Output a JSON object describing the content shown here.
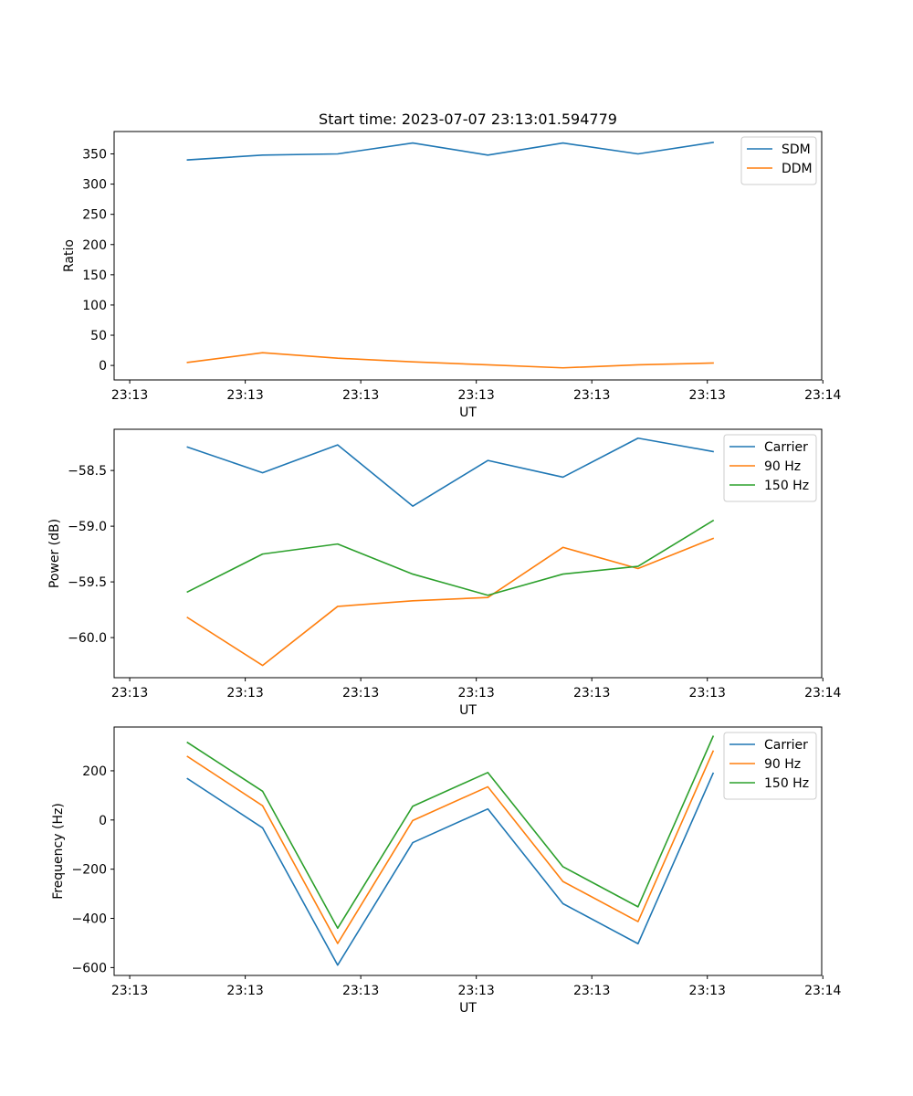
{
  "colors": {
    "series_1": "#1f77b4",
    "series_2": "#ff7f0e",
    "series_3": "#2ca02c",
    "axis": "#000000",
    "legend_border": "#cccccc",
    "background": "#ffffff"
  },
  "chart_data": [
    {
      "type": "line",
      "title": "Start time: 2023-07-07 23:13:01.594779",
      "xlabel": "UT",
      "ylabel": "Ratio",
      "grid": false,
      "legend_position": "top-right",
      "xlim": [
        -0.135,
        5.99
      ],
      "ylim": [
        -24,
        387
      ],
      "x": [
        0.5,
        1.15,
        1.8,
        2.45,
        3.1,
        3.75,
        4.4,
        5.05
      ],
      "xtick_values": [
        0,
        1,
        2,
        3,
        4,
        5,
        6
      ],
      "xtick_labels": [
        "23:13",
        "23:13",
        "23:13",
        "23:13",
        "23:13",
        "23:13",
        "23:14"
      ],
      "ytick_values": [
        0,
        50,
        100,
        150,
        200,
        250,
        300,
        350
      ],
      "ytick_labels": [
        "0",
        "50",
        "100",
        "150",
        "200",
        "250",
        "300",
        "350"
      ],
      "series": [
        {
          "name": "SDM",
          "color_key": "series_1",
          "values": [
            340,
            348,
            350,
            368,
            348,
            368,
            350,
            369
          ]
        },
        {
          "name": "DDM",
          "color_key": "series_2",
          "values": [
            5,
            21,
            12,
            6,
            1,
            -4,
            1,
            4
          ]
        }
      ]
    },
    {
      "type": "line",
      "title": "",
      "xlabel": "UT",
      "ylabel": "Power (dB)",
      "grid": false,
      "legend_position": "top-right",
      "xlim": [
        -0.135,
        5.99
      ],
      "ylim": [
        -60.36,
        -58.13
      ],
      "x": [
        0.5,
        1.15,
        1.8,
        2.45,
        3.1,
        3.75,
        4.4,
        5.05
      ],
      "xtick_values": [
        0,
        1,
        2,
        3,
        4,
        5,
        6
      ],
      "xtick_labels": [
        "23:13",
        "23:13",
        "23:13",
        "23:13",
        "23:13",
        "23:13",
        "23:14"
      ],
      "ytick_values": [
        -60.0,
        -59.5,
        -59.0,
        -58.5
      ],
      "ytick_labels": [
        "−60.0",
        "−59.5",
        "−59.0",
        "−58.5"
      ],
      "series": [
        {
          "name": "Carrier",
          "color_key": "series_1",
          "values": [
            -58.29,
            -58.52,
            -58.27,
            -58.82,
            -58.41,
            -58.56,
            -58.21,
            -58.33
          ]
        },
        {
          "name": "90 Hz",
          "color_key": "series_2",
          "values": [
            -59.82,
            -60.25,
            -59.72,
            -59.67,
            -59.64,
            -59.19,
            -59.38,
            -59.11
          ]
        },
        {
          "name": "150 Hz",
          "color_key": "series_3",
          "values": [
            -59.59,
            -59.25,
            -59.16,
            -59.43,
            -59.62,
            -59.43,
            -59.36,
            -58.95
          ]
        }
      ]
    },
    {
      "type": "line",
      "title": "",
      "xlabel": "UT",
      "ylabel": "Frequency (Hz)",
      "grid": false,
      "legend_position": "top-right",
      "xlim": [
        -0.135,
        5.99
      ],
      "ylim": [
        -632,
        378
      ],
      "x": [
        0.5,
        1.15,
        1.8,
        2.45,
        3.1,
        3.75,
        4.4,
        5.05
      ],
      "xtick_values": [
        0,
        1,
        2,
        3,
        4,
        5,
        6
      ],
      "xtick_labels": [
        "23:13",
        "23:13",
        "23:13",
        "23:13",
        "23:13",
        "23:13",
        "23:14"
      ],
      "ytick_values": [
        -600,
        -400,
        -200,
        0,
        200
      ],
      "ytick_labels": [
        "−600",
        "−400",
        "−200",
        "0",
        "200"
      ],
      "series": [
        {
          "name": "Carrier",
          "color_key": "series_1",
          "values": [
            168,
            -32,
            -590,
            -92,
            45,
            -340,
            -503,
            190
          ]
        },
        {
          "name": "90 Hz",
          "color_key": "series_2",
          "values": [
            258,
            58,
            -502,
            -2,
            135,
            -250,
            -413,
            280
          ]
        },
        {
          "name": "150 Hz",
          "color_key": "series_3",
          "values": [
            315,
            117,
            -440,
            56,
            193,
            -190,
            -353,
            340
          ]
        }
      ]
    }
  ]
}
